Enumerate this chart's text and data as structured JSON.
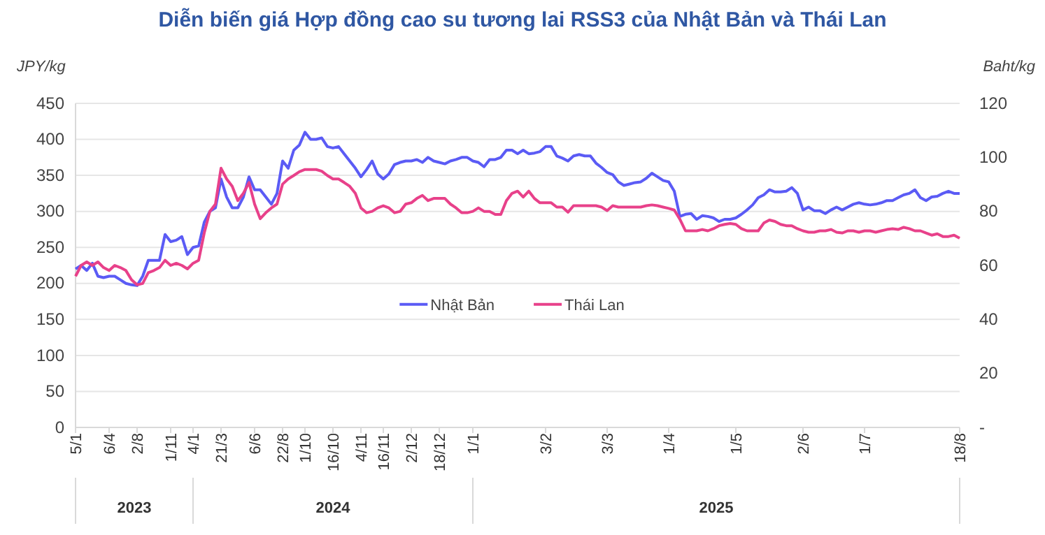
{
  "chart_data": {
    "type": "line",
    "title": "Diễn biến giá Hợp đồng cao su tương lai RSS3 của Nhật Bản và Thái Lan",
    "ylabel": "JPY/kg",
    "y2label": "Baht/kg",
    "categories": [
      "5/1",
      null,
      null,
      null,
      null,
      null,
      "6/4",
      null,
      null,
      null,
      null,
      "2/8",
      null,
      null,
      null,
      null,
      null,
      "1/11",
      null,
      null,
      null,
      "4/1",
      null,
      null,
      null,
      null,
      "21/3",
      null,
      null,
      null,
      null,
      null,
      "6/6",
      null,
      null,
      null,
      null,
      "22/8",
      null,
      null,
      null,
      "1/10",
      null,
      null,
      null,
      null,
      "16/10",
      null,
      null,
      null,
      null,
      "4/11",
      null,
      null,
      null,
      "16/11",
      null,
      null,
      null,
      null,
      "2/12",
      null,
      null,
      null,
      null,
      "18/12",
      null,
      null,
      null,
      null,
      null,
      "1/1",
      null,
      null,
      null,
      null,
      null,
      null,
      null,
      null,
      null,
      null,
      null,
      null,
      "3/2",
      null,
      null,
      null,
      null,
      null,
      null,
      null,
      null,
      null,
      null,
      "3/3",
      null,
      null,
      null,
      null,
      null,
      null,
      null,
      null,
      null,
      null,
      "1/4",
      null,
      null,
      null,
      null,
      null,
      null,
      null,
      null,
      null,
      null,
      null,
      "1/5",
      null,
      null,
      null,
      null,
      null,
      null,
      null,
      null,
      null,
      null,
      null,
      "2/6",
      null,
      null,
      null,
      null,
      null,
      null,
      null,
      null,
      null,
      null,
      "1/7",
      null,
      null,
      null,
      null,
      null,
      null,
      null,
      null,
      null,
      null,
      null,
      null,
      null,
      null,
      null,
      null,
      "18/8"
    ],
    "series": [
      {
        "name": "Nhật Bản",
        "color": "#5b5bf5",
        "values": [
          220,
          225,
          218,
          228,
          210,
          208,
          210,
          210,
          205,
          200,
          198,
          197,
          210,
          232,
          232,
          232,
          268,
          258,
          260,
          265,
          240,
          250,
          252,
          285,
          300,
          305,
          345,
          320,
          305,
          305,
          320,
          348,
          330,
          330,
          320,
          310,
          325,
          370,
          360,
          385,
          392,
          410,
          400,
          400,
          402,
          390,
          388,
          390,
          380,
          370,
          360,
          348,
          358,
          370,
          352,
          345,
          352,
          365,
          368,
          370,
          370,
          372,
          368,
          375,
          370,
          368,
          366,
          370,
          372,
          375,
          375,
          370,
          368,
          362,
          372,
          372,
          375,
          385,
          385,
          380,
          385,
          380,
          381,
          383,
          390,
          390,
          377,
          374,
          370,
          377,
          379,
          377,
          377,
          367,
          361,
          354,
          351,
          341,
          336,
          338,
          340,
          341,
          346,
          353,
          348,
          343,
          341,
          328,
          293,
          296,
          297,
          289,
          294,
          293,
          291,
          286,
          289,
          289,
          291,
          296,
          302,
          309,
          319,
          323,
          330,
          327,
          327,
          328,
          333,
          325,
          302,
          306,
          301,
          301,
          297,
          302,
          306,
          302,
          306,
          310,
          312,
          310,
          309,
          310,
          312,
          315,
          315,
          319,
          323,
          325,
          330,
          319,
          315,
          320,
          321,
          325,
          328,
          325,
          325
        ]
      },
      {
        "name": "Thái Lan",
        "color": "#e8418a",
        "axis": "y2",
        "values": [
          56,
          60,
          61.3,
          60,
          61.3,
          59.2,
          58.1,
          60,
          59.2,
          58.1,
          54.7,
          52.8,
          53.3,
          57.3,
          58.1,
          59.2,
          61.9,
          60,
          60.8,
          60,
          58.7,
          60.8,
          61.9,
          72,
          80,
          82.7,
          96,
          92,
          89.3,
          84,
          86.7,
          90.7,
          82.7,
          77.3,
          79.5,
          81.3,
          82.7,
          90.1,
          92,
          93.3,
          94.7,
          95.5,
          95.5,
          95.5,
          94.9,
          93.3,
          92,
          92,
          90.7,
          89.3,
          86.7,
          81.3,
          79.5,
          80,
          81.3,
          82.1,
          81.3,
          79.5,
          80,
          82.7,
          83.2,
          84.8,
          85.9,
          84,
          84.8,
          84.8,
          84.8,
          82.7,
          81.3,
          79.5,
          79.5,
          80,
          81.3,
          80,
          80,
          78.9,
          78.9,
          84,
          86.7,
          87.5,
          85.3,
          87.5,
          84.8,
          83.2,
          83.2,
          83.2,
          81.6,
          81.6,
          79.7,
          82.1,
          82.1,
          82.1,
          82.1,
          82.1,
          81.6,
          80.3,
          82.1,
          81.6,
          81.6,
          81.6,
          81.6,
          81.6,
          82.1,
          82.4,
          82.1,
          81.6,
          81.1,
          80.5,
          77.1,
          72.8,
          72.8,
          72.8,
          73.3,
          72.8,
          73.6,
          74.7,
          75.2,
          75.5,
          75.2,
          73.6,
          72.8,
          72.8,
          72.8,
          75.7,
          76.8,
          76.3,
          75.2,
          74.7,
          74.7,
          73.6,
          72.8,
          72.3,
          72.3,
          72.8,
          72.8,
          73.3,
          72.3,
          72,
          72.8,
          72.8,
          72.3,
          72.8,
          72.8,
          72.3,
          72.8,
          73.3,
          73.6,
          73.3,
          74.1,
          73.6,
          72.8,
          72.8,
          72,
          71.2,
          71.7,
          70.7,
          70.7,
          71.2,
          70.1
        ]
      }
    ],
    "ylim": [
      0,
      450
    ],
    "yticks": [
      0,
      50,
      100,
      150,
      200,
      250,
      300,
      350,
      400,
      450
    ],
    "y2lim": [
      0,
      120
    ],
    "y2ticks": [
      {
        "value": 0,
        "label": "-"
      },
      20,
      40,
      60,
      80,
      100,
      120
    ],
    "annotations": [
      "2023",
      "2024",
      "2025"
    ],
    "grid": "y",
    "legend": "center",
    "line_style": "solid",
    "marker": "none"
  }
}
